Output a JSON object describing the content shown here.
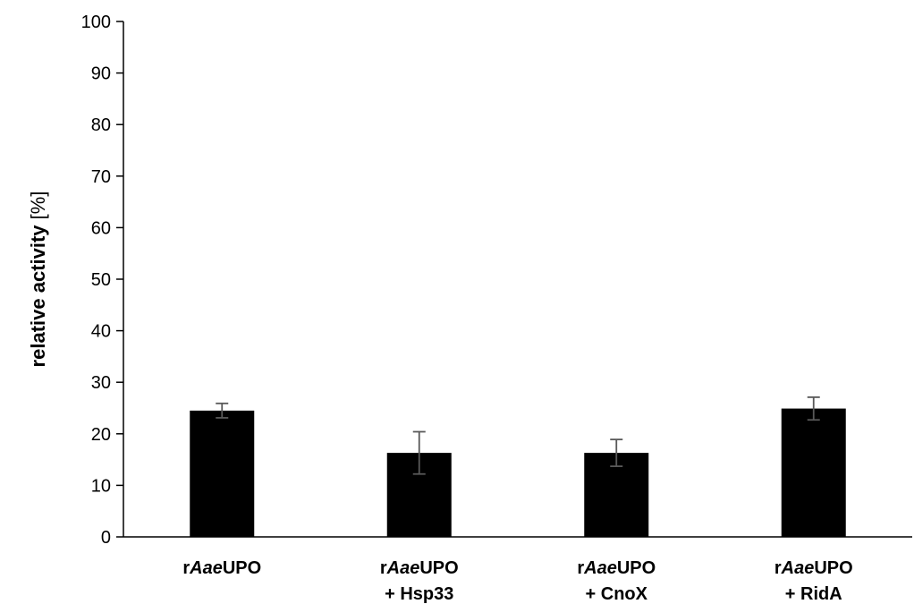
{
  "chart_data": {
    "type": "bar",
    "title": "",
    "xlabel": "",
    "ylabel": {
      "bold": "relative activity",
      "unit": " [%]"
    },
    "ylim": [
      0,
      100
    ],
    "yticks": [
      0,
      10,
      20,
      30,
      40,
      50,
      60,
      70,
      80,
      90,
      100
    ],
    "grid": false,
    "legend": "none",
    "categories": [
      {
        "lines": [
          [
            {
              "text": "r"
            },
            {
              "text": "Aae",
              "italic": true
            },
            {
              "text": "UPO"
            }
          ]
        ]
      },
      {
        "lines": [
          [
            {
              "text": "r"
            },
            {
              "text": "Aae",
              "italic": true
            },
            {
              "text": "UPO"
            }
          ],
          [
            {
              "text": "+ Hsp33"
            }
          ]
        ]
      },
      {
        "lines": [
          [
            {
              "text": "r"
            },
            {
              "text": "Aae",
              "italic": true
            },
            {
              "text": "UPO"
            }
          ],
          [
            {
              "text": "+ CnoX"
            }
          ]
        ]
      },
      {
        "lines": [
          [
            {
              "text": "r"
            },
            {
              "text": "Aae",
              "italic": true
            },
            {
              "text": "UPO"
            }
          ],
          [
            {
              "text": "+ RidA"
            }
          ]
        ]
      }
    ],
    "values": [
      24.5,
      16.3,
      16.3,
      24.9
    ],
    "errors": [
      1.4,
      4.1,
      2.6,
      2.2
    ],
    "colors": {
      "bar": "#000000",
      "error_bar": "#595959",
      "axis": "#000000"
    }
  }
}
